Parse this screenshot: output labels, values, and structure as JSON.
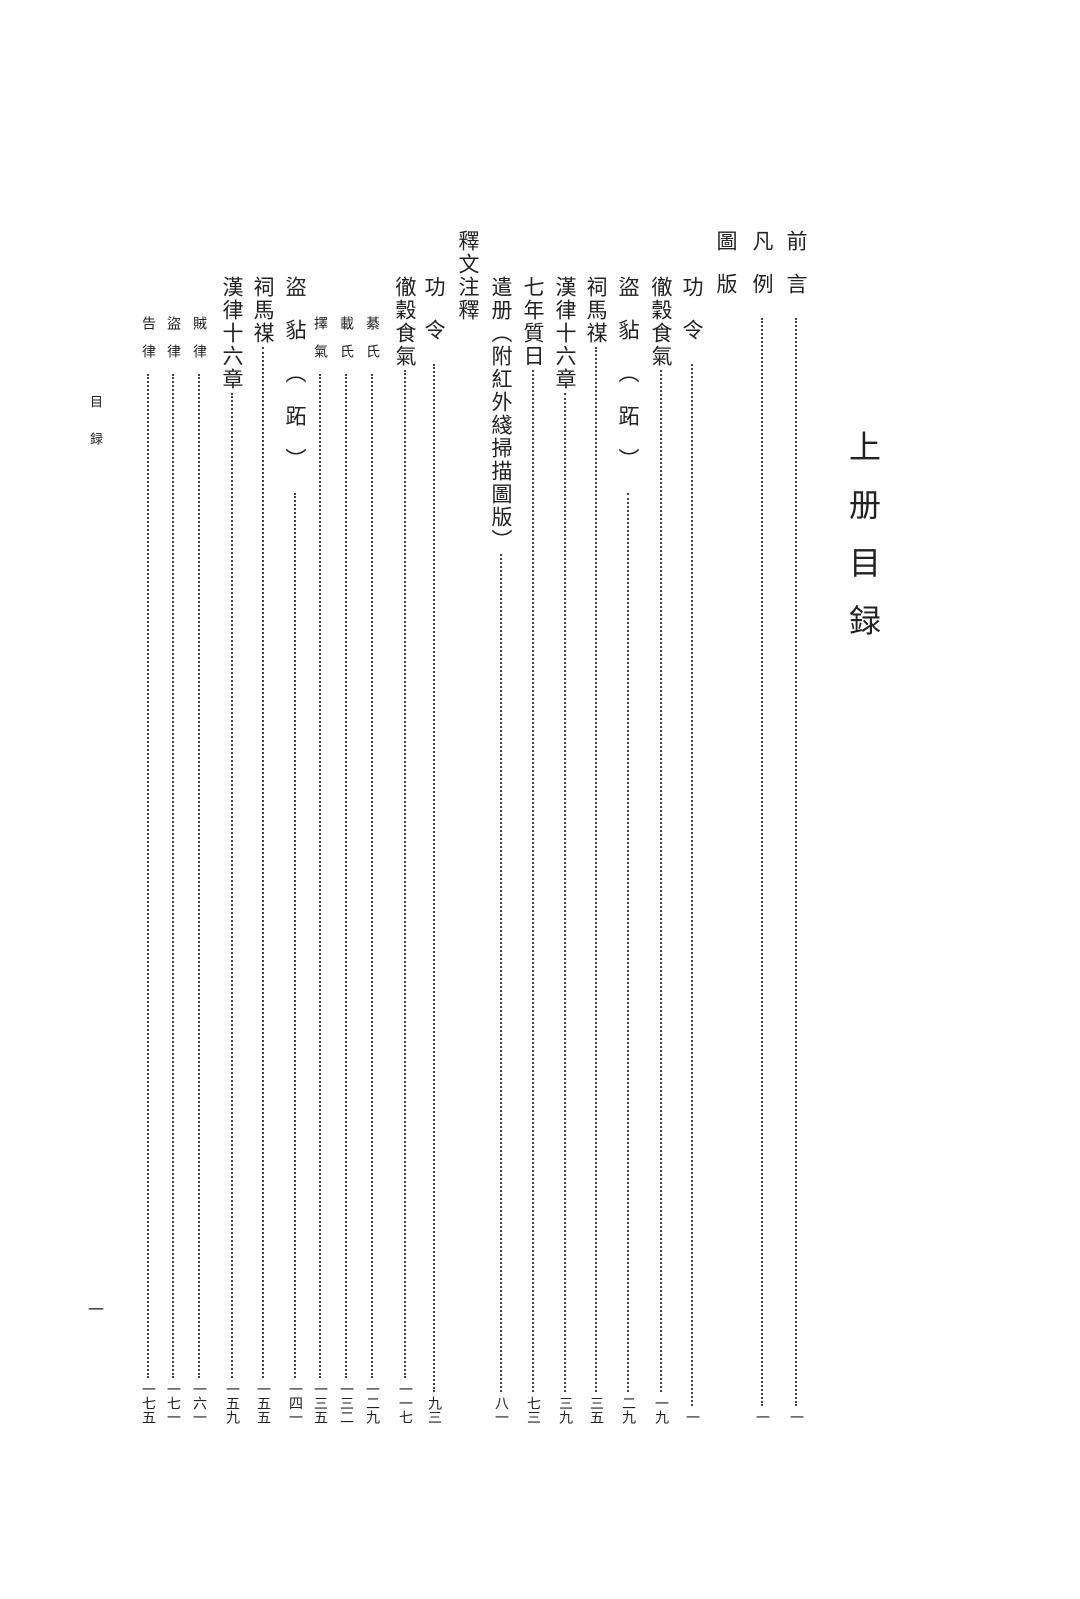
{
  "page_title": "上册目録",
  "running_header": "目録",
  "page_number": "一",
  "entries": [
    {
      "title": "前言",
      "page": "一"
    },
    {
      "title": "凡例",
      "page": "一"
    },
    {
      "title": "圖版",
      "page": ""
    },
    {
      "title": "功令",
      "page": "一"
    },
    {
      "title": "徹穀食氣",
      "page": "一九"
    },
    {
      "title": "盜𧲸（跖）",
      "page": "二九"
    },
    {
      "title": "祠馬禖",
      "page": "三五"
    },
    {
      "title": "漢律十六章",
      "page": "三九"
    },
    {
      "title": "七年質日",
      "page": "七三"
    },
    {
      "title": "遣册（附紅外綫掃描圖版）",
      "page": "八一"
    },
    {
      "title": "釋文注釋",
      "page": ""
    },
    {
      "title": "功令",
      "page": "九三"
    },
    {
      "title": "徹穀食氣",
      "page": "一一七"
    },
    {
      "title": "綦氏",
      "page": "一二九"
    },
    {
      "title": "載氏",
      "page": "一三二"
    },
    {
      "title": "擇氣",
      "page": "一三五"
    },
    {
      "title": "盜𧲸（跖）",
      "page": "一四一"
    },
    {
      "title": "祠馬禖",
      "page": "一五五"
    },
    {
      "title": "漢律十六章",
      "page": "一五九"
    },
    {
      "title": "賊律",
      "page": "一六一"
    },
    {
      "title": "盜律",
      "page": "一七一"
    },
    {
      "title": "告律",
      "page": "一七五"
    }
  ]
}
